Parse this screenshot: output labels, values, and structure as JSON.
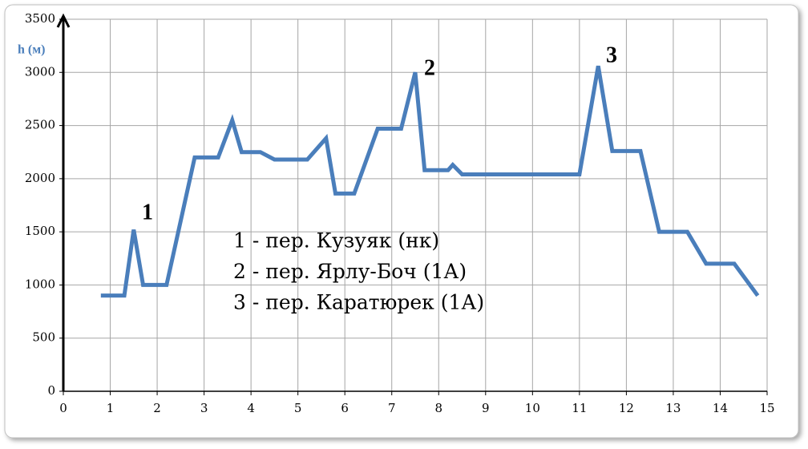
{
  "chart_data": {
    "type": "line",
    "y_label": "h (м)",
    "x": [
      0.8,
      1.3,
      1.5,
      1.7,
      2.2,
      2.8,
      3.3,
      3.6,
      3.8,
      4.2,
      4.5,
      5.2,
      5.6,
      5.8,
      6.2,
      6.7,
      7.2,
      7.5,
      7.7,
      8.2,
      8.3,
      8.5,
      11.0,
      11.4,
      11.7,
      12.3,
      12.7,
      13.3,
      13.7,
      14.3,
      14.8
    ],
    "series": [
      {
        "color": "#4a7ebb",
        "values": [
          900,
          900,
          1520,
          1000,
          1000,
          2200,
          2200,
          2550,
          2250,
          2250,
          2180,
          2180,
          2380,
          1860,
          1860,
          2470,
          2470,
          3000,
          2080,
          2080,
          2130,
          2040,
          2040,
          3060,
          2260,
          2260,
          1500,
          1500,
          1200,
          1200,
          900
        ]
      }
    ],
    "xlim": [
      0,
      15
    ],
    "xticks": [
      0,
      1,
      2,
      3,
      4,
      5,
      6,
      7,
      8,
      9,
      10,
      11,
      12,
      13,
      14,
      15
    ],
    "ylim": [
      0,
      3500
    ],
    "yticks": [
      0,
      500,
      1000,
      1500,
      2000,
      2500,
      3000,
      3500
    ],
    "grid": true,
    "peak_labels": [
      "1",
      "2",
      "3"
    ],
    "annotations": [
      "1 - пер. Кузуяк (нк)",
      "2 - пер. Ярлу-Боч (1А)",
      "3 - пер. Каратюрек (1А)"
    ]
  }
}
